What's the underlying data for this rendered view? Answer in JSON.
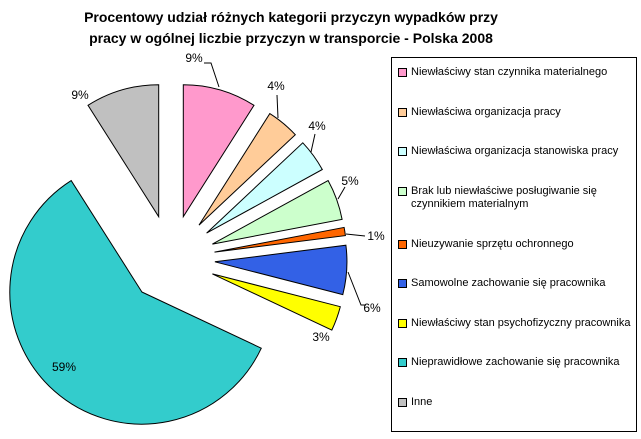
{
  "chart_title": {
    "line1": "Procentowy udział różnych kategorii przyczyn wypadków przy",
    "line2": "pracy w ogólnej liczbie przyczyn w transporcie - Polska 2008"
  },
  "chart_data": {
    "type": "pie",
    "title": "Procentowy udział różnych kategorii przyczyn wypadków przy pracy w ogólnej liczbie przyczyn w transporcie - Polska 2008",
    "unit": "%",
    "categories": [
      "Niewłaściwy stan czynnika materialnego",
      "Niewłaściwa organizacja pracy",
      "Niewłaściwa organizacja stanowiska pracy",
      "Brak lub niewłaściwe posługiwanie się czynnikiem materialnym",
      "Nieuzywanie sprzętu ochronnego",
      "Samowolne zachowanie się pracownika",
      "Niewłaściwy stan psychofizyczny pracownika",
      "Nieprawidłowe zachowanie się pracownika",
      "Inne"
    ],
    "values": [
      9,
      4,
      4,
      5,
      1,
      6,
      3,
      59,
      9
    ],
    "labels": [
      "9%",
      "4%",
      "4%",
      "5%",
      "1%",
      "6%",
      "3%",
      "59%",
      "9%"
    ],
    "colors": [
      "#FF99CC",
      "#FFCC99",
      "#CCFFFF",
      "#CCFFCC",
      "#FF6600",
      "#3361E6",
      "#FFFF00",
      "#33CCCC",
      "#C0C0C0"
    ],
    "legend_position": "right",
    "exploded": true,
    "start_angle_deg": 0,
    "direction": "clockwise"
  }
}
